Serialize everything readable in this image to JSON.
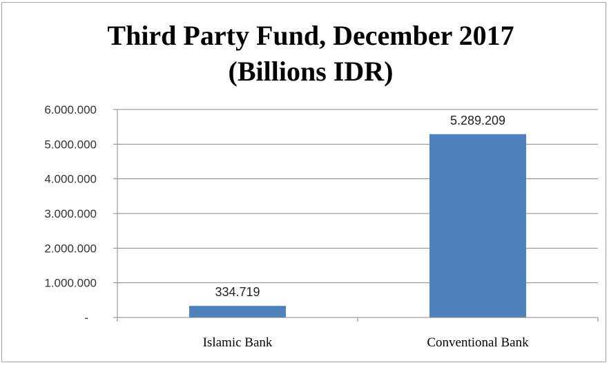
{
  "chart_data": {
    "type": "bar",
    "title": [
      "Third Party Fund, December 2017",
      "(Billions IDR)"
    ],
    "categories": [
      "Islamic Bank",
      "Conventional Bank"
    ],
    "values": [
      334719,
      5289209
    ],
    "data_labels": [
      "334.719",
      "5.289.209"
    ],
    "ylim": [
      0,
      6000000
    ],
    "y_ticks": [
      {
        "value": 0,
        "label": "-"
      },
      {
        "value": 1000000,
        "label": "1.000.000"
      },
      {
        "value": 2000000,
        "label": "2.000.000"
      },
      {
        "value": 3000000,
        "label": "3.000.000"
      },
      {
        "value": 4000000,
        "label": "4.000.000"
      },
      {
        "value": 5000000,
        "label": "5.000.000"
      },
      {
        "value": 6000000,
        "label": "6.000.000"
      }
    ],
    "grid": true,
    "legend": "none",
    "colors": {
      "bar": "#4f81bd",
      "grid": "#868686",
      "axis": "#868686"
    }
  }
}
